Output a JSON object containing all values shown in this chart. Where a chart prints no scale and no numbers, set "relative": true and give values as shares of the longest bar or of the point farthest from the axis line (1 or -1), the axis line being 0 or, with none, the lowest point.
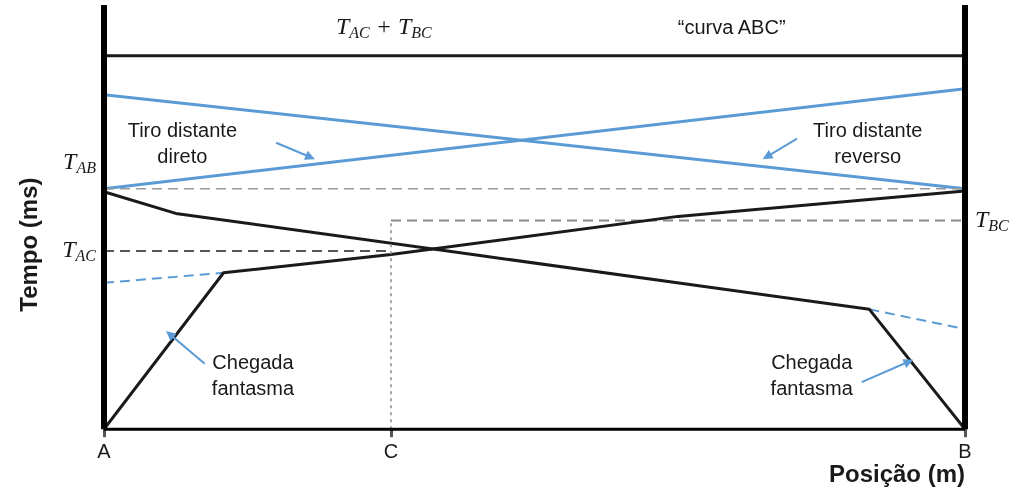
{
  "chart_data": {
    "type": "line",
    "relative": true,
    "xlabel": "Posição (m)",
    "ylabel": "Tempo (ms)",
    "categories": [
      "A",
      null,
      null,
      null,
      null,
      null,
      null,
      null,
      null,
      null,
      null,
      null,
      "C",
      null,
      null,
      null,
      null,
      null,
      null,
      null,
      null,
      null,
      null,
      null,
      null,
      null,
      null,
      null,
      null,
      null,
      null,
      null,
      null,
      null,
      null,
      null,
      "B"
    ],
    "series": [
      {
        "color": "#5b9bd5",
        "values": [
          0.644,
          null,
          null,
          null,
          null,
          null,
          null,
          null,
          null,
          null,
          null,
          null,
          null,
          null,
          null,
          null,
          null,
          null,
          null,
          null,
          null,
          null,
          null,
          null,
          null,
          null,
          null,
          null,
          null,
          null,
          null,
          null,
          null,
          null,
          null,
          null,
          0.912
        ]
      },
      {
        "color": "#5b9bd5",
        "values": [
          0.896,
          null,
          null,
          null,
          null,
          null,
          null,
          null,
          null,
          null,
          null,
          null,
          null,
          null,
          null,
          null,
          null,
          null,
          null,
          null,
          null,
          null,
          null,
          null,
          null,
          null,
          null,
          null,
          null,
          null,
          null,
          null,
          null,
          null,
          null,
          null,
          0.644
        ]
      },
      {
        "color": "#1a1a1a",
        "values": [
          0,
          null,
          null,
          null,
          null,
          0.419,
          null,
          null,
          null,
          null,
          null,
          null,
          0.468,
          null,
          null,
          null,
          null,
          null,
          null,
          null,
          null,
          null,
          null,
          null,
          0.57,
          null,
          null,
          null,
          null,
          null,
          null,
          null,
          null,
          null,
          null,
          null,
          0.638
        ]
      },
      {
        "color": "#1a1a1a",
        "values": [
          0.636,
          null,
          null,
          0.578,
          null,
          null,
          null,
          null,
          null,
          null,
          null,
          null,
          null,
          null,
          null,
          null,
          null,
          null,
          null,
          null,
          null,
          null,
          null,
          null,
          null,
          null,
          null,
          null,
          null,
          null,
          null,
          null,
          0.321,
          null,
          null,
          null,
          0
        ]
      },
      {
        "color": "#5b9bd5",
        "line_style": "dashed",
        "values": [
          0.392,
          null,
          null,
          null,
          null,
          0.419,
          null,
          null,
          null,
          null,
          null,
          null,
          null,
          null,
          null,
          null,
          null,
          null,
          null,
          null,
          null,
          null,
          null,
          null,
          null,
          null,
          null,
          null,
          null,
          null,
          null,
          null,
          null,
          null,
          null,
          null,
          null
        ]
      },
      {
        "color": "#5b9bd5",
        "line_style": "dashed",
        "values": [
          null,
          null,
          null,
          null,
          null,
          null,
          null,
          null,
          null,
          null,
          null,
          null,
          null,
          null,
          null,
          null,
          null,
          null,
          null,
          null,
          null,
          null,
          null,
          null,
          null,
          null,
          null,
          null,
          null,
          null,
          null,
          null,
          0.321,
          null,
          null,
          null,
          0.268
        ]
      },
      {
        "color": "#555555",
        "line_style": "dashed",
        "values": [
          0.477,
          null,
          null,
          null,
          null,
          null,
          null,
          null,
          null,
          null,
          null,
          null,
          0.477,
          null,
          null,
          null,
          null,
          null,
          null,
          null,
          null,
          null,
          null,
          null,
          null,
          null,
          null,
          null,
          null,
          null,
          null,
          null,
          null,
          null,
          null,
          null,
          null
        ]
      },
      {
        "color": "#888888",
        "line_style": "dashed",
        "values": [
          null,
          null,
          null,
          null,
          null,
          null,
          null,
          null,
          null,
          null,
          null,
          null,
          0.559,
          null,
          null,
          null,
          null,
          null,
          null,
          null,
          null,
          null,
          null,
          null,
          null,
          null,
          null,
          null,
          null,
          null,
          null,
          null,
          null,
          null,
          null,
          null,
          0.559
        ]
      },
      {
        "color": "#1a1a1a",
        "values": [
          1,
          null,
          null,
          null,
          null,
          null,
          null,
          null,
          null,
          null,
          null,
          null,
          null,
          null,
          null,
          null,
          null,
          null,
          null,
          null,
          null,
          null,
          null,
          null,
          null,
          null,
          null,
          null,
          null,
          null,
          null,
          null,
          null,
          null,
          null,
          null,
          1
        ]
      }
    ],
    "ref_lines": [
      {
        "axis": "y",
        "value": 0.644,
        "label": "T$_{AB}$",
        "color": "#999999",
        "line_style": "dashed"
      },
      {
        "axis": "x",
        "value": "C",
        "color": "#888888",
        "line_style": "dotted"
      }
    ],
    "annotations": [
      "T$_{AC}$ + T$_{BC}$",
      "“curva ABC”",
      "Tiro distante\ndireto",
      "Tiro distante\nreverso",
      "Chegada\nfantasma",
      "Chegada\nfantasma",
      {
        "text": "T$_{AC}$",
        "x": "A",
        "y": 0.477
      },
      {
        "text": "T$_{BC}$",
        "x": "B",
        "y": 0.559
      }
    ]
  }
}
